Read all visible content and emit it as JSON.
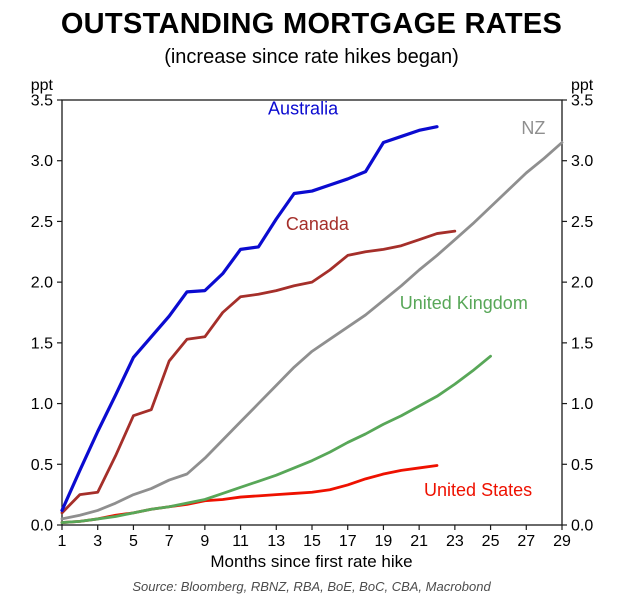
{
  "chart": {
    "title": "OUTSTANDING MORTGAGE RATES",
    "subtitle": "(increase since rate hikes began)",
    "xlabel": "Months since first rate hike",
    "source": "Source: Bloomberg, RBNZ, RBA, BoE, BoC, CBA, Macrobond",
    "unit_label": "ppt"
  },
  "chart_data": {
    "type": "line",
    "title": "OUTSTANDING MORTGAGE RATES",
    "subtitle": "(increase since rate hikes began)",
    "xlabel": "Months since first rate hike",
    "ylabel": "ppt",
    "x_range": [
      1,
      29
    ],
    "y_range": [
      0,
      3.5
    ],
    "x_ticks": [
      1,
      3,
      5,
      7,
      9,
      11,
      13,
      15,
      17,
      19,
      21,
      23,
      25,
      27,
      29
    ],
    "y_ticks": [
      0.0,
      0.5,
      1.0,
      1.5,
      2.0,
      2.5,
      3.0,
      3.5
    ],
    "grid": false,
    "legend_position": "inline-labels",
    "series": [
      {
        "id": "united-states",
        "name": "United States",
        "color": "#ee1100",
        "width": 2.8,
        "x_start": 1,
        "label_pos": [
          24.3,
          0.24
        ],
        "values": [
          0.02,
          0.03,
          0.05,
          0.08,
          0.1,
          0.13,
          0.15,
          0.17,
          0.2,
          0.21,
          0.23,
          0.24,
          0.25,
          0.26,
          0.27,
          0.29,
          0.33,
          0.38,
          0.42,
          0.45,
          0.47,
          0.49
        ]
      },
      {
        "id": "united-kingdom",
        "name": "United Kingdom",
        "color": "#58a758",
        "width": 2.8,
        "x_start": 1,
        "label_pos": [
          23.5,
          1.78
        ],
        "values": [
          0.02,
          0.03,
          0.05,
          0.07,
          0.1,
          0.13,
          0.15,
          0.18,
          0.21,
          0.26,
          0.31,
          0.36,
          0.41,
          0.47,
          0.53,
          0.6,
          0.68,
          0.75,
          0.83,
          0.9,
          0.98,
          1.06,
          1.16,
          1.27,
          1.39
        ]
      },
      {
        "id": "nz",
        "name": "NZ",
        "color": "#8f8f8f",
        "width": 2.8,
        "x_start": 1,
        "label_pos": [
          27.4,
          3.22
        ],
        "values": [
          0.05,
          0.08,
          0.12,
          0.18,
          0.25,
          0.3,
          0.37,
          0.42,
          0.55,
          0.7,
          0.85,
          1.0,
          1.15,
          1.3,
          1.43,
          1.53,
          1.63,
          1.73,
          1.85,
          1.97,
          2.1,
          2.22,
          2.35,
          2.48,
          2.62,
          2.76,
          2.9,
          3.02,
          3.15
        ]
      },
      {
        "id": "canada",
        "name": "Canada",
        "color": "#a52f2a",
        "width": 2.8,
        "x_start": 1,
        "label_pos": [
          15.3,
          2.43
        ],
        "values": [
          0.1,
          0.25,
          0.27,
          0.57,
          0.9,
          0.95,
          1.35,
          1.53,
          1.55,
          1.75,
          1.88,
          1.9,
          1.93,
          1.97,
          2.0,
          2.1,
          2.22,
          2.25,
          2.27,
          2.3,
          2.35,
          2.4,
          2.42
        ]
      },
      {
        "id": "australia",
        "name": "Australia",
        "color": "#0b0bd0",
        "width": 3.2,
        "x_start": 1,
        "label_pos": [
          14.5,
          3.38
        ],
        "values": [
          0.12,
          0.45,
          0.77,
          1.07,
          1.38,
          1.55,
          1.72,
          1.92,
          1.93,
          2.07,
          2.27,
          2.29,
          2.52,
          2.73,
          2.75,
          2.8,
          2.85,
          2.91,
          3.15,
          3.2,
          3.25,
          3.28
        ]
      }
    ]
  }
}
